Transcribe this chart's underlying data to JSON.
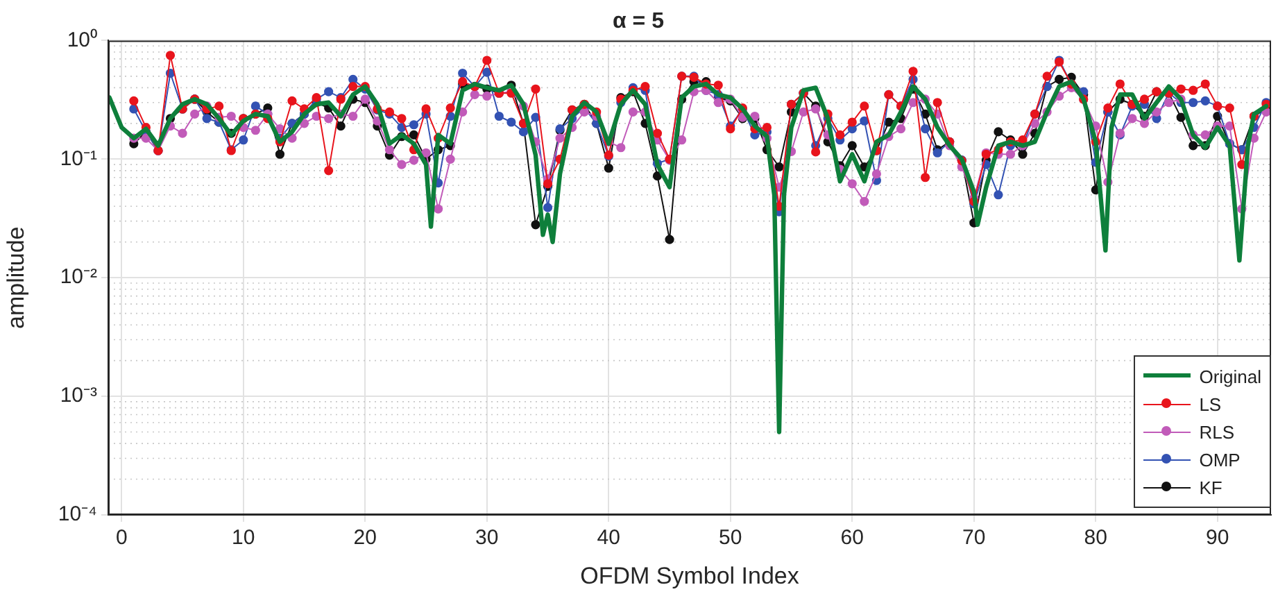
{
  "chart_data": {
    "type": "line",
    "title": "α = 5",
    "xlabel": "OFDM Symbol Index",
    "ylabel": "amplitude",
    "xlim": [
      -1.1,
      94.4
    ],
    "xticks": [
      0,
      10,
      20,
      30,
      40,
      50,
      60,
      70,
      80,
      90
    ],
    "ylim": [
      0.0001,
      1
    ],
    "yticks": [
      {
        "value": 0.0001,
        "label": "10⁻⁴"
      },
      {
        "value": 0.001,
        "label": "10⁻³"
      },
      {
        "value": 0.01,
        "label": "10⁻²"
      },
      {
        "value": 0.1,
        "label": "10⁻¹"
      },
      {
        "value": 1,
        "label": "10⁰"
      }
    ],
    "log": "y",
    "grid": true,
    "legend": "bottom right",
    "marker": "circle",
    "line_style": "solid",
    "x": [
      1,
      2,
      3,
      4,
      5,
      6,
      7,
      8,
      9,
      10,
      11,
      12,
      13,
      14,
      15,
      16,
      17,
      18,
      19,
      20,
      21,
      22,
      23,
      24,
      25,
      26,
      27,
      28,
      29,
      30,
      31,
      32,
      33,
      34,
      35,
      36,
      37,
      38,
      39,
      40,
      41,
      42,
      43,
      44,
      45,
      46,
      47,
      48,
      49,
      50,
      51,
      52,
      53,
      54,
      55,
      56,
      57,
      58,
      59,
      60,
      61,
      62,
      63,
      64,
      65,
      66,
      67,
      68,
      69,
      70,
      71,
      72,
      73,
      74,
      75,
      76,
      77,
      78,
      79,
      80,
      81,
      82,
      83,
      84,
      85,
      86,
      87,
      88,
      89,
      90,
      91,
      92,
      93,
      94
    ],
    "series": [
      {
        "name": "Original",
        "color": "#0e7f3b",
        "marker": "none",
        "x": [
          -1,
          0,
          1,
          2,
          3,
          4,
          5,
          6,
          7,
          8,
          9,
          10,
          11,
          12,
          13,
          14,
          15,
          16,
          17,
          18,
          19,
          20,
          21,
          22,
          23,
          24,
          25,
          25.4,
          26,
          27,
          28,
          29,
          30,
          31,
          32,
          33,
          34,
          34.6,
          35,
          35.4,
          36,
          37,
          38,
          39,
          40,
          41,
          42,
          43,
          44,
          45,
          46,
          47,
          48,
          49,
          50,
          51,
          52,
          53,
          53.6,
          54,
          54.4,
          55,
          56,
          57,
          58,
          59,
          60,
          61,
          62,
          63,
          64,
          65,
          66,
          67,
          68,
          69,
          70,
          70.3,
          71,
          72,
          73,
          74,
          75,
          76,
          77,
          78,
          79,
          80,
          80.8,
          81.3,
          82,
          83,
          84,
          85,
          86,
          87,
          88,
          89,
          90,
          91,
          91.8,
          92.5,
          93,
          94
        ],
        "values": [
          0.33,
          0.185,
          0.15,
          0.18,
          0.13,
          0.22,
          0.29,
          0.32,
          0.29,
          0.22,
          0.16,
          0.21,
          0.24,
          0.23,
          0.14,
          0.17,
          0.24,
          0.29,
          0.3,
          0.23,
          0.35,
          0.41,
          0.29,
          0.135,
          0.16,
          0.135,
          0.09,
          0.027,
          0.16,
          0.135,
          0.38,
          0.43,
          0.4,
          0.38,
          0.42,
          0.29,
          0.108,
          0.023,
          0.034,
          0.02,
          0.075,
          0.23,
          0.3,
          0.25,
          0.135,
          0.29,
          0.38,
          0.29,
          0.09,
          0.058,
          0.33,
          0.41,
          0.43,
          0.35,
          0.33,
          0.265,
          0.19,
          0.155,
          0.05,
          0.0005,
          0.05,
          0.185,
          0.38,
          0.4,
          0.22,
          0.065,
          0.11,
          0.065,
          0.14,
          0.16,
          0.25,
          0.41,
          0.32,
          0.185,
          0.13,
          0.1,
          0.053,
          0.028,
          0.058,
          0.13,
          0.14,
          0.13,
          0.14,
          0.25,
          0.41,
          0.45,
          0.32,
          0.14,
          0.017,
          0.185,
          0.35,
          0.35,
          0.22,
          0.3,
          0.41,
          0.32,
          0.16,
          0.125,
          0.185,
          0.13,
          0.014,
          0.13,
          0.24,
          0.28
        ]
      },
      {
        "name": "LS",
        "color": "#e8141c",
        "values": [
          0.31,
          0.185,
          0.118,
          0.75,
          0.265,
          0.32,
          0.265,
          0.28,
          0.118,
          0.22,
          0.24,
          0.22,
          0.14,
          0.31,
          0.265,
          0.33,
          0.08,
          0.32,
          0.41,
          0.41,
          0.265,
          0.25,
          0.22,
          0.12,
          0.265,
          0.15,
          0.27,
          0.45,
          0.41,
          0.68,
          0.36,
          0.36,
          0.2,
          0.39,
          0.062,
          0.1,
          0.26,
          0.29,
          0.25,
          0.108,
          0.32,
          0.38,
          0.41,
          0.165,
          0.1,
          0.5,
          0.49,
          0.43,
          0.42,
          0.18,
          0.27,
          0.18,
          0.185,
          0.04,
          0.29,
          0.36,
          0.115,
          0.24,
          0.16,
          0.205,
          0.28,
          0.118,
          0.35,
          0.28,
          0.55,
          0.07,
          0.3,
          0.14,
          0.097,
          0.044,
          0.11,
          0.12,
          0.14,
          0.145,
          0.24,
          0.5,
          0.66,
          0.43,
          0.32,
          0.14,
          0.27,
          0.43,
          0.29,
          0.32,
          0.37,
          0.36,
          0.39,
          0.38,
          0.43,
          0.28,
          0.27,
          0.09,
          0.23,
          0.29
        ]
      },
      {
        "name": "RLS",
        "color": "#c15bb9",
        "values": [
          0.15,
          0.15,
          0.118,
          0.19,
          0.165,
          0.24,
          0.28,
          0.225,
          0.23,
          0.185,
          0.175,
          0.24,
          0.18,
          0.15,
          0.2,
          0.23,
          0.22,
          0.24,
          0.23,
          0.32,
          0.21,
          0.12,
          0.09,
          0.098,
          0.113,
          0.038,
          0.1,
          0.25,
          0.35,
          0.34,
          0.36,
          0.37,
          0.28,
          0.14,
          0.068,
          0.15,
          0.185,
          0.25,
          0.23,
          0.14,
          0.125,
          0.25,
          0.25,
          0.145,
          0.098,
          0.145,
          0.37,
          0.38,
          0.3,
          0.32,
          0.225,
          0.23,
          0.15,
          0.058,
          0.116,
          0.25,
          0.265,
          0.16,
          0.082,
          0.062,
          0.044,
          0.075,
          0.155,
          0.18,
          0.3,
          0.32,
          0.24,
          0.13,
          0.086,
          0.047,
          0.113,
          0.11,
          0.11,
          0.13,
          0.2,
          0.25,
          0.34,
          0.4,
          0.32,
          0.19,
          0.064,
          0.165,
          0.22,
          0.2,
          0.25,
          0.3,
          0.32,
          0.16,
          0.16,
          0.19,
          0.19,
          0.038,
          0.15,
          0.25
        ]
      },
      {
        "name": "OMP",
        "color": "#3352b3",
        "values": [
          0.265,
          0.17,
          0.118,
          0.53,
          0.265,
          0.32,
          0.22,
          0.205,
          0.12,
          0.145,
          0.28,
          0.24,
          0.15,
          0.2,
          0.24,
          0.32,
          0.37,
          0.33,
          0.47,
          0.39,
          0.26,
          0.24,
          0.185,
          0.195,
          0.24,
          0.063,
          0.23,
          0.53,
          0.41,
          0.54,
          0.23,
          0.205,
          0.17,
          0.225,
          0.039,
          0.18,
          0.22,
          0.27,
          0.2,
          0.106,
          0.3,
          0.4,
          0.38,
          0.092,
          0.1,
          0.5,
          0.5,
          0.38,
          0.35,
          0.19,
          0.265,
          0.16,
          0.17,
          0.036,
          0.29,
          0.36,
          0.13,
          0.22,
          0.145,
          0.18,
          0.21,
          0.066,
          0.35,
          0.28,
          0.47,
          0.18,
          0.113,
          0.14,
          0.098,
          0.042,
          0.09,
          0.05,
          0.13,
          0.13,
          0.24,
          0.41,
          0.68,
          0.43,
          0.37,
          0.094,
          0.25,
          0.16,
          0.28,
          0.29,
          0.22,
          0.36,
          0.3,
          0.3,
          0.31,
          0.28,
          0.135,
          0.12,
          0.185,
          0.3
        ]
      },
      {
        "name": "KF",
        "color": "#111111",
        "values": [
          0.135,
          0.17,
          0.118,
          0.22,
          0.265,
          0.32,
          0.25,
          0.205,
          0.165,
          0.22,
          0.24,
          0.27,
          0.11,
          0.2,
          0.24,
          0.3,
          0.27,
          0.19,
          0.32,
          0.3,
          0.19,
          0.108,
          0.155,
          0.16,
          0.1,
          0.12,
          0.13,
          0.43,
          0.41,
          0.39,
          0.36,
          0.42,
          0.2,
          0.028,
          0.059,
          0.175,
          0.26,
          0.29,
          0.2,
          0.084,
          0.33,
          0.37,
          0.2,
          0.072,
          0.021,
          0.32,
          0.45,
          0.45,
          0.33,
          0.31,
          0.22,
          0.22,
          0.12,
          0.086,
          0.25,
          0.36,
          0.28,
          0.14,
          0.088,
          0.13,
          0.086,
          0.118,
          0.205,
          0.22,
          0.39,
          0.24,
          0.12,
          0.14,
          0.098,
          0.029,
          0.098,
          0.17,
          0.145,
          0.11,
          0.165,
          0.41,
          0.47,
          0.49,
          0.35,
          0.055,
          0.25,
          0.32,
          0.29,
          0.23,
          0.37,
          0.36,
          0.225,
          0.13,
          0.13,
          0.23,
          0.135,
          0.12,
          0.23,
          0.265
        ]
      }
    ]
  }
}
